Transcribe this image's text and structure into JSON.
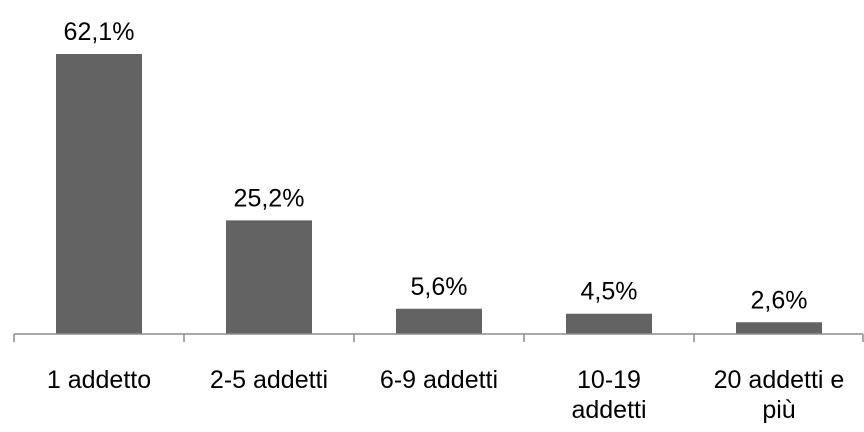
{
  "chart_data": {
    "type": "bar",
    "categories": [
      [
        "1 addetto"
      ],
      [
        "2-5 addetti"
      ],
      [
        "6-9 addetti"
      ],
      [
        "10-19",
        "addetti"
      ],
      [
        "20 addetti e",
        "più"
      ]
    ],
    "values": [
      62.1,
      25.2,
      5.6,
      4.5,
      2.6
    ],
    "value_labels": [
      "62,1%",
      "25,2%",
      "5,6%",
      "4,5%",
      "2,6%"
    ],
    "ylim": [
      0,
      62.1
    ],
    "grid": false,
    "legend": "none",
    "colors": {
      "bar": "#636363",
      "axis": "#8c8c8c",
      "text": "#000000"
    }
  }
}
